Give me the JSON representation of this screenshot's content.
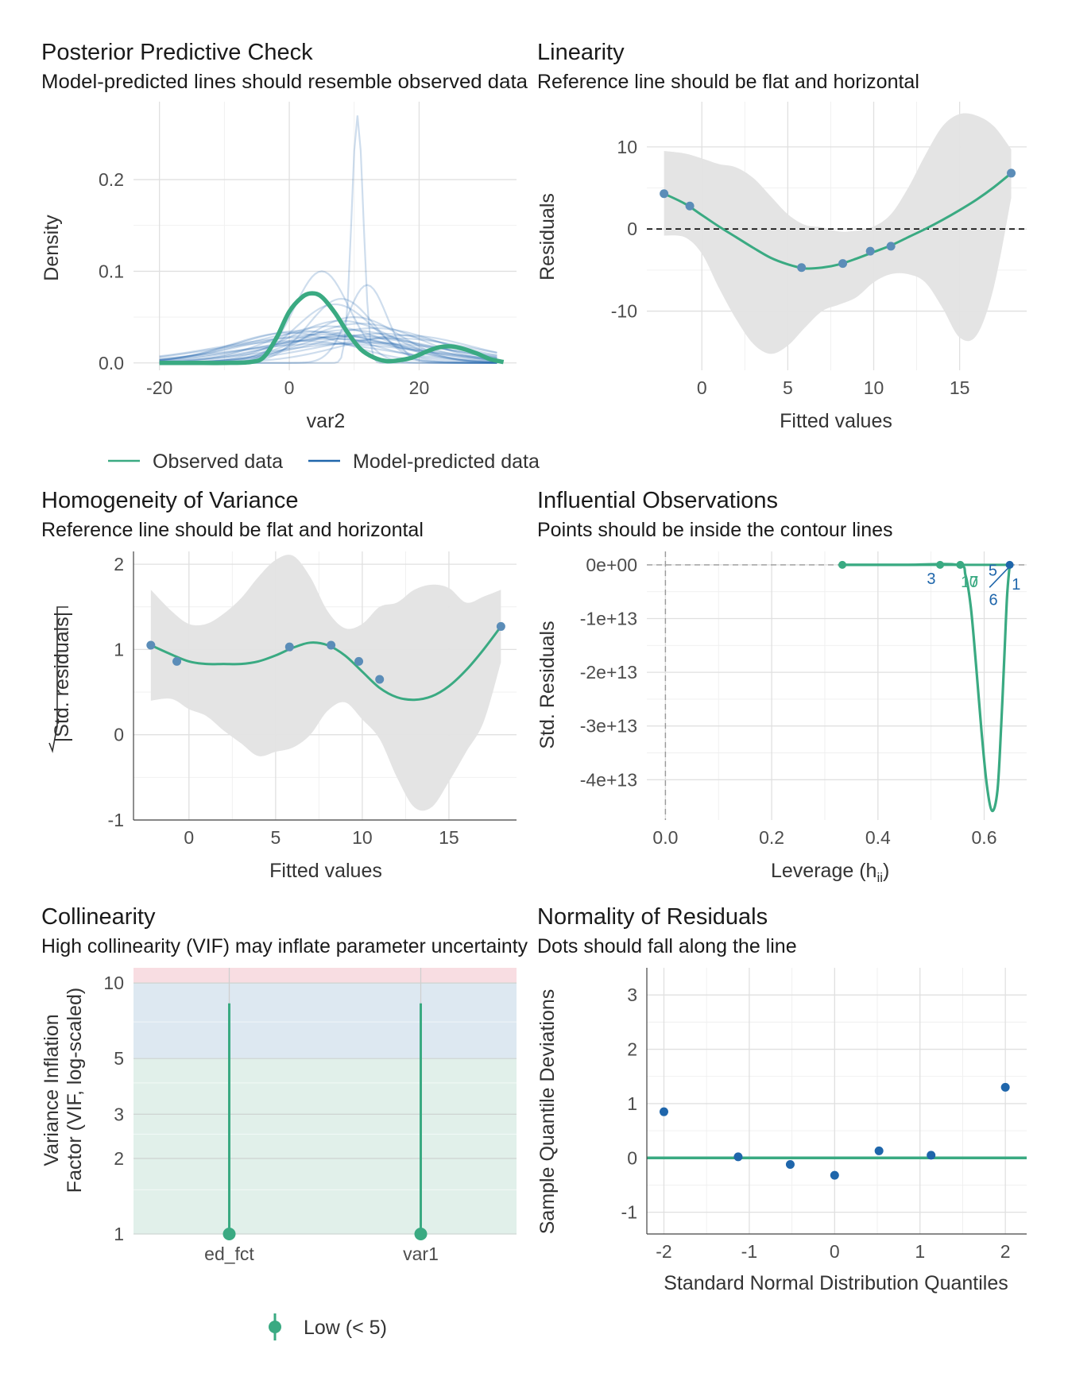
{
  "colors": {
    "observed": "#3aaa82",
    "predicted": "#1f66ab",
    "point": "#5b8db8",
    "band": "#e3e3e3",
    "low_zone": "#e1f0ea",
    "moderate_zone": "#dde8f1",
    "high_zone": "#f8dde2"
  },
  "chart_data": [
    {
      "id": "ppc",
      "type": "line",
      "title": "Posterior Predictive Check",
      "subtitle": "Model-predicted lines should resemble observed data",
      "xlabel": "var2",
      "ylabel": "Density",
      "xlim": [
        -24,
        35
      ],
      "ylim": [
        -0.008,
        0.285
      ],
      "xticks": [
        -20,
        0,
        20
      ],
      "xtick_labels": [
        "-20",
        "0",
        "20"
      ],
      "yticks": [
        0.0,
        0.1,
        0.2
      ],
      "ytick_labels": [
        "0.0",
        "0.1",
        "0.2"
      ],
      "legend": {
        "position": "bottom",
        "entries": [
          "Observed data",
          "Model-predicted data"
        ]
      },
      "observed": {
        "x": [
          -20,
          -15,
          -10,
          -6,
          -4,
          -2,
          0,
          2,
          3.5,
          5,
          7,
          9,
          11,
          13,
          15,
          17,
          19,
          21,
          23,
          25,
          27,
          29,
          31,
          33
        ],
        "y": [
          0.0,
          0.0,
          0.0,
          0.001,
          0.006,
          0.027,
          0.056,
          0.072,
          0.076,
          0.072,
          0.055,
          0.033,
          0.015,
          0.006,
          0.002,
          0.003,
          0.006,
          0.012,
          0.017,
          0.018,
          0.015,
          0.01,
          0.004,
          0.001
        ]
      },
      "predicted_series": [
        {
          "center": 7,
          "sd": 13,
          "peak": 0.026
        },
        {
          "center": 10,
          "sd": 12,
          "peak": 0.03
        },
        {
          "center": 4,
          "sd": 11,
          "peak": 0.034
        },
        {
          "center": 12,
          "sd": 14,
          "peak": 0.022
        },
        {
          "center": 6,
          "sd": 9,
          "peak": 0.04
        },
        {
          "center": 9,
          "sd": 10,
          "peak": 0.036
        },
        {
          "center": 3,
          "sd": 14,
          "peak": 0.028
        },
        {
          "center": 14,
          "sd": 11,
          "peak": 0.032
        },
        {
          "center": 8,
          "sd": 8,
          "peak": 0.046
        },
        {
          "center": 5,
          "sd": 12,
          "peak": 0.031
        },
        {
          "center": 11,
          "sd": 9,
          "peak": 0.043
        },
        {
          "center": 1,
          "sd": 13,
          "peak": 0.024
        },
        {
          "center": 16,
          "sd": 12,
          "peak": 0.027
        },
        {
          "center": 10,
          "sd": 7,
          "peak": 0.05
        },
        {
          "center": 6,
          "sd": 15,
          "peak": 0.021
        },
        {
          "center": 13,
          "sd": 10,
          "peak": 0.038
        },
        {
          "center": 2,
          "sd": 10,
          "peak": 0.035
        },
        {
          "center": 9,
          "sd": 13,
          "peak": 0.029
        },
        {
          "center": 18,
          "sd": 10,
          "peak": 0.03
        },
        {
          "center": 7,
          "sd": 6,
          "peak": 0.064
        },
        {
          "center": 5,
          "sd": 4.2,
          "peak": 0.1
        },
        {
          "center": 10.5,
          "sd": 0.9,
          "peak": 0.27
        },
        {
          "center": 12,
          "sd": 3,
          "peak": 0.085
        },
        {
          "center": 8,
          "sd": 5,
          "peak": 0.07
        },
        {
          "center": 0,
          "sd": 9,
          "peak": 0.033
        }
      ]
    },
    {
      "id": "linearity",
      "type": "scatter",
      "title": "Linearity",
      "subtitle": "Reference line should be flat and horizontal",
      "xlabel": "Fitted values",
      "ylabel": "Residuals",
      "xlim": [
        -3.2,
        18.9
      ],
      "ylim": [
        -17.2,
        15.5
      ],
      "xticks": [
        0,
        5,
        10,
        15
      ],
      "xtick_labels": [
        "0",
        "5",
        "10",
        "15"
      ],
      "yticks": [
        -10,
        0,
        10
      ],
      "ytick_labels": [
        "-10",
        "0",
        "10"
      ],
      "reference_y": 0,
      "points": {
        "x": [
          -2.2,
          -0.7,
          5.8,
          8.2,
          9.8,
          11.0,
          18.0
        ],
        "y": [
          4.3,
          2.8,
          -4.7,
          -4.2,
          -2.7,
          -2.1,
          6.8
        ]
      },
      "fit": {
        "x": [
          -2.2,
          -1,
          0,
          1,
          2,
          3,
          4,
          5,
          6,
          7,
          8,
          9,
          10,
          11,
          12,
          13,
          14,
          15,
          16,
          17,
          18
        ],
        "y": [
          4.3,
          3.1,
          1.7,
          0.3,
          -1.0,
          -2.3,
          -3.5,
          -4.3,
          -4.8,
          -4.7,
          -4.3,
          -3.6,
          -2.8,
          -2.0,
          -1.0,
          0.0,
          1.1,
          2.3,
          3.6,
          5.1,
          6.8
        ]
      },
      "band_upper": [
        9.5,
        9.2,
        8.6,
        7.9,
        7.5,
        6.2,
        4.0,
        1.8,
        0.5,
        0.2,
        -0.3,
        -0.2,
        0.3,
        1.8,
        5.0,
        9.0,
        12.5,
        14.0,
        13.8,
        12.5,
        9.7
      ],
      "band_lower": [
        -0.8,
        -1.0,
        -3.0,
        -7.2,
        -11.0,
        -14.0,
        -15.2,
        -14.2,
        -12.0,
        -10.0,
        -9.2,
        -8.3,
        -6.5,
        -5.5,
        -5.5,
        -6.5,
        -9.6,
        -13.2,
        -12.9,
        -7.0,
        3.8
      ]
    },
    {
      "id": "homogeneity",
      "type": "scatter",
      "title": "Homogeneity of Variance",
      "subtitle": "Reference line should be flat and horizontal",
      "xlabel": "Fitted values",
      "ylabel": "|Std. residuals|",
      "xlim": [
        -3.2,
        18.9
      ],
      "ylim": [
        -1.0,
        2.15
      ],
      "xticks": [
        0,
        5,
        10,
        15
      ],
      "xtick_labels": [
        "0",
        "5",
        "10",
        "15"
      ],
      "yticks": [
        -1,
        0,
        1,
        2
      ],
      "ytick_labels": [
        "-1",
        "0",
        "1",
        "2"
      ],
      "points": {
        "x": [
          -2.2,
          -0.7,
          5.8,
          8.2,
          9.8,
          11.0,
          18.0
        ],
        "y": [
          1.05,
          0.86,
          1.03,
          1.05,
          0.86,
          0.65,
          1.27
        ]
      },
      "fit": {
        "x": [
          -2.2,
          -1,
          0,
          1,
          2,
          3,
          4,
          5,
          6,
          7,
          8,
          9,
          10,
          11,
          12,
          13,
          14,
          15,
          16,
          17,
          18
        ],
        "y": [
          1.05,
          0.94,
          0.86,
          0.83,
          0.83,
          0.83,
          0.86,
          0.93,
          1.02,
          1.08,
          1.05,
          0.93,
          0.74,
          0.55,
          0.44,
          0.41,
          0.45,
          0.57,
          0.76,
          1.0,
          1.27
        ]
      },
      "band_upper": [
        1.7,
        1.45,
        1.3,
        1.3,
        1.42,
        1.6,
        1.85,
        2.05,
        2.1,
        1.85,
        1.45,
        1.25,
        1.3,
        1.5,
        1.55,
        1.7,
        1.76,
        1.72,
        1.55,
        1.62,
        1.7
      ],
      "band_lower": [
        0.4,
        0.42,
        0.3,
        0.22,
        0.05,
        -0.1,
        -0.25,
        -0.2,
        -0.15,
        0.0,
        0.28,
        0.38,
        0.18,
        -0.05,
        -0.5,
        -0.85,
        -0.85,
        -0.55,
        -0.2,
        0.15,
        0.85
      ]
    },
    {
      "id": "influential",
      "type": "scatter",
      "title": "Influential Observations",
      "subtitle": "Points should be inside the contour lines",
      "xlabel": "Leverage (h",
      "xlabel_subscript": "ii",
      "xlabel_close": ")",
      "ylabel": "Std. Residuals",
      "xlim": [
        -0.035,
        0.68
      ],
      "ylim": [
        -47500000000000,
        2500000000000
      ],
      "xticks": [
        0.0,
        0.2,
        0.4,
        0.6
      ],
      "xtick_labels": [
        "0.0",
        "0.2",
        "0.4",
        "0.6"
      ],
      "yticks": [
        0,
        -10000000000000,
        -20000000000000,
        -30000000000000,
        -40000000000000
      ],
      "ytick_labels": [
        "0e+00",
        "-1e+13",
        "-2e+13",
        "-3e+13",
        "-4e+13"
      ],
      "points": {
        "x": [
          0.333,
          0.517,
          0.555,
          0.648
        ],
        "y": [
          0,
          0,
          0,
          0
        ]
      },
      "contour": {
        "x": [
          0.333,
          0.45,
          0.55,
          0.565,
          0.575,
          0.585,
          0.595,
          0.605,
          0.615,
          0.625,
          0.632,
          0.638,
          0.643,
          0.648
        ],
        "y": [
          0,
          0,
          0,
          -2000000000000,
          -8000000000000,
          -19000000000000,
          -31000000000000,
          -41000000000000,
          -45800000000000,
          -42000000000000,
          -30000000000000,
          -17000000000000,
          -6000000000000,
          0
        ]
      },
      "labels": [
        {
          "text": "3",
          "x": 0.492,
          "y": -2400000000000,
          "color": "predicted"
        },
        {
          "text": "17",
          "x": 0.556,
          "y": -3000000000000,
          "color": "observed"
        },
        {
          "text": "0",
          "x": 0.572,
          "y": -3000000000000,
          "color": "observed"
        },
        {
          "text": "5",
          "x": 0.608,
          "y": -800000000000,
          "color": "predicted"
        },
        {
          "text": "1",
          "x": 0.652,
          "y": -3400000000000,
          "color": "predicted"
        },
        {
          "text": "6",
          "x": 0.609,
          "y": -6300000000000,
          "color": "predicted"
        }
      ]
    },
    {
      "id": "collinearity",
      "type": "bar",
      "title": "Collinearity",
      "subtitle": "High collinearity (VIF) may inflate parameter uncertainty",
      "xlabel": "",
      "ylabel": "Variance Inflation Factor (VIF, log-scaled)",
      "ylabel_lines": [
        "Variance Inflation",
        "Factor (VIF, log-scaled)"
      ],
      "log_y": true,
      "ylim": [
        1,
        11.5
      ],
      "yticks": [
        1,
        2,
        3,
        5,
        10
      ],
      "ytick_labels": [
        "1",
        "2",
        "3",
        "5",
        "10"
      ],
      "categories": [
        "ed_fct",
        "var1"
      ],
      "values": [
        1.0,
        1.0
      ],
      "ci_upper": [
        8.3,
        8.3
      ],
      "zones": [
        {
          "name": "low",
          "from": 1,
          "to": 5
        },
        {
          "name": "moderate",
          "from": 5,
          "to": 10
        },
        {
          "name": "high",
          "from": 10,
          "to": 11.5
        }
      ],
      "legend": {
        "position": "bottom",
        "entries": [
          "Low (< 5)"
        ]
      }
    },
    {
      "id": "normality",
      "type": "scatter",
      "title": "Normality of Residuals",
      "subtitle": "Dots should fall along the line",
      "xlabel": "Standard Normal Distribution Quantiles",
      "ylabel": "Sample Quantile Deviations",
      "xlim": [
        -2.2,
        2.25
      ],
      "ylim": [
        -1.4,
        3.5
      ],
      "xticks": [
        -2,
        -1,
        0,
        1,
        2
      ],
      "xtick_labels": [
        "-2",
        "-1",
        "0",
        "1",
        "2"
      ],
      "yticks": [
        -1,
        0,
        1,
        2,
        3
      ],
      "ytick_labels": [
        "-1",
        "0",
        "1",
        "2",
        "3"
      ],
      "reference_y": 0,
      "points": {
        "x": [
          -2.0,
          -1.13,
          -0.52,
          0.0,
          0.52,
          1.13,
          2.0
        ],
        "y": [
          0.85,
          0.02,
          -0.12,
          -0.32,
          0.13,
          0.05,
          1.3
        ]
      }
    }
  ]
}
